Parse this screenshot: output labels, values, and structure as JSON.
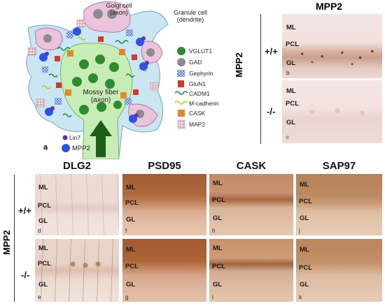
{
  "diagram": {
    "panel_letter": "a",
    "golgi_label": "Golgi cell\n(axon)",
    "granule_label": "Granule cell\n(dendrite)",
    "mossy_label": "Mossy fiber\n(axon)",
    "legend": [
      {
        "name": "VGLUT1",
        "icon": "green-circle",
        "color": "#2e8b2e"
      },
      {
        "name": "GAD",
        "icon": "gray-circle",
        "color": "#8c8c8c"
      },
      {
        "name": "Gephyrin",
        "icon": "blue-hatch-square",
        "color": "#4a6ed8"
      },
      {
        "name": "GluN1",
        "icon": "red-cube",
        "color": "#d23a2a"
      },
      {
        "name": "CADM1",
        "icon": "green-squiggle",
        "color": "#1f8c4a"
      },
      {
        "name": "M-cadherin",
        "icon": "yellow-squiggle",
        "color": "#d9c21a"
      },
      {
        "name": "CASK",
        "icon": "orange-square",
        "color": "#e0892a"
      },
      {
        "name": "MAP2",
        "icon": "lattice-square",
        "color": "#c46f8a"
      }
    ],
    "lin7_label": "Lin7",
    "mpp2_label": "MPP2",
    "lin7_color": "#6a2db0",
    "mpp2_color": "#2a55e0"
  },
  "mpp2_panel": {
    "title": "MPP2",
    "row_title": "MPP2",
    "wt_label": "+/+",
    "ko_label": "-/-",
    "b": {
      "letter": "b",
      "layers": [
        "ML",
        "PCL",
        "GL"
      ]
    },
    "c": {
      "letter": "c",
      "layers": [
        "ML",
        "PCL",
        "GL"
      ]
    }
  },
  "grid": {
    "row_title": "MPP2",
    "wt_label": "+/+",
    "ko_label": "-/-",
    "columns": [
      "DLG2",
      "PSD95",
      "CASK",
      "SAP97"
    ],
    "panels": [
      {
        "letter": "d",
        "layers": [
          "ML",
          "PCL",
          "GL"
        ]
      },
      {
        "letter": "f",
        "layers": [
          "ML",
          "PCL",
          "GL"
        ]
      },
      {
        "letter": "h",
        "layers": [
          "ML",
          "PCL",
          "GL"
        ]
      },
      {
        "letter": "j",
        "layers": [
          "ML",
          "PCL",
          "GL"
        ]
      },
      {
        "letter": "e",
        "layers": [
          "ML",
          "PCL",
          "GL"
        ]
      },
      {
        "letter": "g",
        "layers": [
          "ML",
          "PCL",
          "GL"
        ]
      },
      {
        "letter": "i",
        "layers": [
          "ML",
          "PCL",
          "GL"
        ]
      },
      {
        "letter": "k",
        "layers": [
          "ML",
          "PCL",
          "GL"
        ]
      }
    ]
  }
}
